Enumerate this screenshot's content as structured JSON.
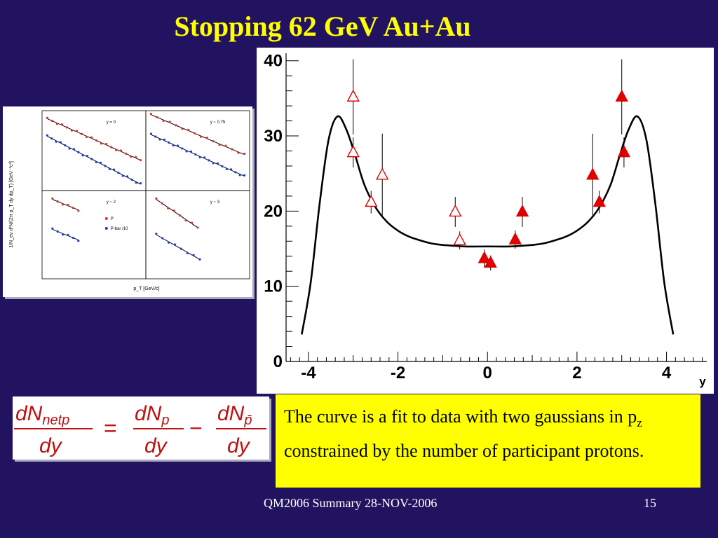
{
  "slide": {
    "title": "Stopping 62 GeV Au+Au",
    "footer_left": "QM2006 Summary 28-NOV-2006",
    "page_number": "15"
  },
  "note": {
    "text_before": "The curve is a fit to data with two gaussians in p",
    "subscript": "z",
    "text_after": " constrained by the number of participant protons."
  },
  "formula": {
    "lhs_num": "dN",
    "lhs_sub": "netp",
    "lhs_den": "dy",
    "t1_num": "dN",
    "t1_sub": "p",
    "t1_den": "dy",
    "t2_num": "dN",
    "t2_sub": "p̄",
    "t2_den": "dy",
    "eq": "=",
    "minus": "−"
  },
  "panels": {
    "y_axis_label": "1/N_ev d²N/(2π p_T dy dp_T) [GeV⁻²c³]",
    "x_axis_label": "p_T [GeV/c]",
    "subplots": [
      {
        "label": "y = 0"
      },
      {
        "label": "y ~ 0.75"
      },
      {
        "label": "y ~ 2",
        "legend": [
          "P",
          "P-bar /10"
        ]
      },
      {
        "label": "y ~ 3"
      }
    ],
    "colors": {
      "proton": "#e0302a",
      "antiproton": "#1a3fd0"
    }
  },
  "chart_data": {
    "type": "scatter",
    "xlabel": "y",
    "ylabel": "",
    "xlim": [
      -4.5,
      4.9
    ],
    "ylim": [
      0,
      41
    ],
    "x_ticks": [
      -4,
      -2,
      0,
      2,
      4
    ],
    "y_ticks": [
      0,
      10,
      20,
      30,
      40
    ],
    "grid": false,
    "series": [
      {
        "marker": "open-triangle",
        "color": "#e00000",
        "points": [
          {
            "x": -3.0,
            "y": 35.2,
            "err": 5.0
          },
          {
            "x": -3.0,
            "y": 27.8,
            "err": 2.0
          },
          {
            "x": -2.6,
            "y": 21.2,
            "err": 1.5
          },
          {
            "x": -2.35,
            "y": 24.8,
            "err": 5.5
          },
          {
            "x": -0.72,
            "y": 19.9,
            "err": 2.0
          },
          {
            "x": -0.62,
            "y": 16.1,
            "err": 1.2
          }
        ]
      },
      {
        "marker": "filled-triangle",
        "color": "#e00000",
        "points": [
          {
            "x": -0.07,
            "y": 13.7,
            "err": 1.2
          },
          {
            "x": 0.07,
            "y": 13.1,
            "err": 1.0
          },
          {
            "x": 0.62,
            "y": 16.2,
            "err": 1.2
          },
          {
            "x": 0.78,
            "y": 19.9,
            "err": 2.0
          },
          {
            "x": 2.35,
            "y": 24.8,
            "err": 5.5
          },
          {
            "x": 2.5,
            "y": 21.2,
            "err": 1.5
          },
          {
            "x": 3.0,
            "y": 35.2,
            "err": 5.0
          },
          {
            "x": 3.05,
            "y": 27.8,
            "err": 2.0
          }
        ]
      }
    ],
    "fit_curve": {
      "color": "#000000",
      "x": [
        -4.15,
        -3.95,
        -3.75,
        -3.55,
        -3.35,
        -3.15,
        -2.95,
        -2.75,
        -2.5,
        -2.25,
        -2.0,
        -1.75,
        -1.5,
        -1.25,
        -1.0,
        -0.5,
        0.0,
        0.5,
        1.0,
        1.25,
        1.5,
        1.75,
        2.0,
        2.25,
        2.5,
        2.75,
        2.95,
        3.15,
        3.35,
        3.55,
        3.75,
        3.95,
        4.15
      ],
      "y": [
        3.6,
        10.5,
        21.0,
        29.5,
        32.6,
        30.8,
        27.3,
        23.5,
        20.5,
        18.6,
        17.4,
        16.6,
        16.1,
        15.7,
        15.5,
        15.3,
        15.3,
        15.3,
        15.5,
        15.7,
        16.1,
        16.6,
        17.4,
        18.6,
        20.5,
        23.5,
        27.3,
        30.8,
        32.6,
        29.5,
        21.0,
        10.5,
        3.6
      ]
    }
  }
}
